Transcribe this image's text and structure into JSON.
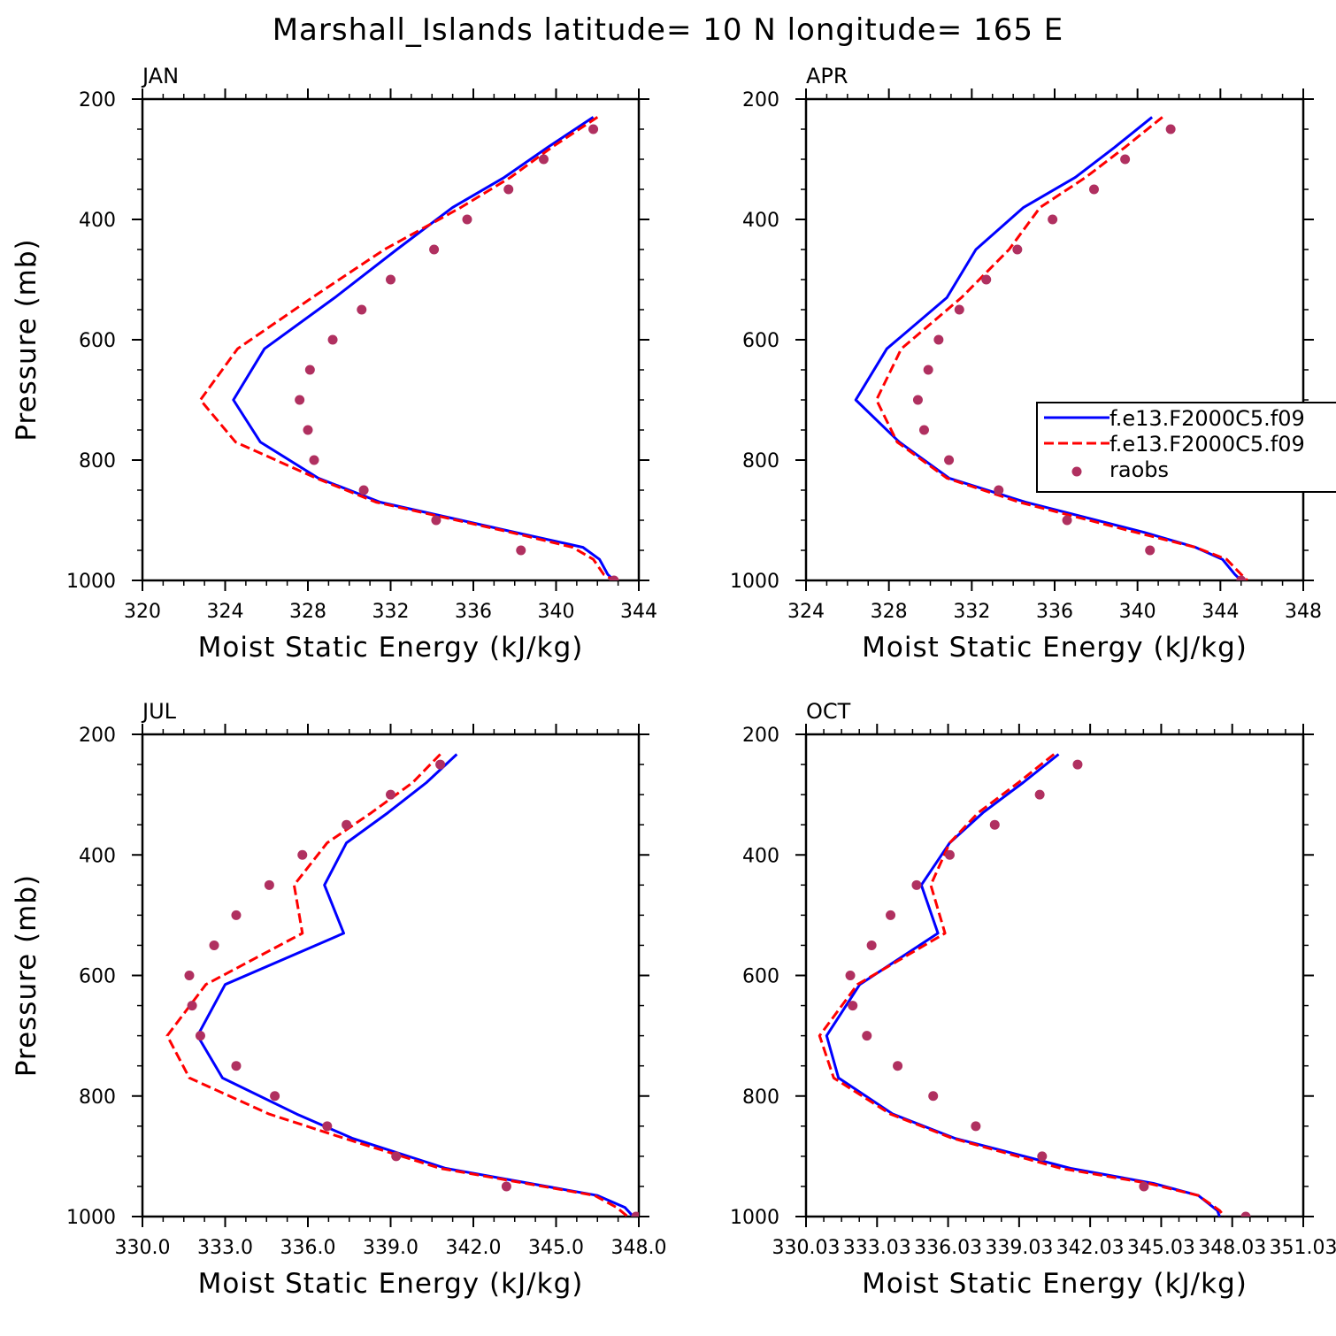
{
  "title": "Marshall_Islands  latitude= 10 N longitude= 165 E",
  "legend": {
    "entries": [
      {
        "label": "f.e13.F2000C5.f09",
        "color": "#0000ff",
        "style": "solid"
      },
      {
        "label": "f.e13.F2000C5.f09",
        "color": "#ff0000",
        "style": "dashed"
      },
      {
        "label": "raobs",
        "color": "#b03060",
        "style": "marker"
      }
    ]
  },
  "chart_data": [
    {
      "type": "line",
      "panel": "JAN",
      "xlabel": "Moist Static Energy (kJ/kg)",
      "ylabel": "Pressure (mb)",
      "xlim": [
        320,
        344
      ],
      "xticks": [
        "320",
        "324",
        "328",
        "332",
        "336",
        "340",
        "344"
      ],
      "ylim": [
        200,
        1000
      ],
      "yticks": [
        "200",
        "400",
        "600",
        "800",
        "1000"
      ],
      "series": [
        {
          "style": "solid",
          "color": "#0000ff",
          "p": [
            230,
            280,
            330,
            380,
            450,
            530,
            615,
            700,
            770,
            830,
            870,
            920,
            945,
            965,
            990,
            1000
          ],
          "x": [
            341.8,
            339.6,
            337.5,
            335.0,
            332.3,
            329.3,
            325.9,
            324.4,
            325.7,
            328.5,
            331.5,
            338.0,
            341.3,
            342.1,
            342.5,
            342.8
          ]
        },
        {
          "style": "dashed",
          "color": "#ff0000",
          "p": [
            230,
            280,
            330,
            380,
            450,
            530,
            615,
            700,
            770,
            830,
            870,
            920,
            945,
            965,
            990,
            1000
          ],
          "x": [
            342.0,
            339.8,
            337.8,
            335.4,
            331.7,
            328.2,
            324.6,
            322.8,
            324.5,
            328.4,
            331.3,
            337.8,
            340.8,
            341.8,
            342.3,
            342.8
          ]
        },
        {
          "style": "marker",
          "color": "#b03060",
          "p": [
            250,
            300,
            350,
            400,
            450,
            500,
            550,
            600,
            650,
            700,
            750,
            800,
            850,
            900,
            950,
            1000
          ],
          "x": [
            341.8,
            339.4,
            337.7,
            335.7,
            334.1,
            332.0,
            330.6,
            329.2,
            328.1,
            327.6,
            328.0,
            328.3,
            330.7,
            334.2,
            338.3,
            342.8
          ]
        }
      ]
    },
    {
      "type": "line",
      "panel": "APR",
      "xlabel": "Moist Static Energy (kJ/kg)",
      "ylabel": "",
      "xlim": [
        324,
        348
      ],
      "xticks": [
        "324",
        "328",
        "332",
        "336",
        "340",
        "344",
        "348"
      ],
      "ylim": [
        200,
        1000
      ],
      "yticks": [
        "200",
        "400",
        "600",
        "800",
        "1000"
      ],
      "series": [
        {
          "style": "solid",
          "color": "#0000ff",
          "p": [
            230,
            280,
            330,
            380,
            450,
            530,
            615,
            700,
            770,
            830,
            870,
            920,
            945,
            965,
            990,
            1000
          ],
          "x": [
            340.7,
            338.9,
            337.0,
            334.5,
            332.2,
            330.8,
            327.9,
            326.4,
            328.5,
            330.9,
            334.6,
            340.3,
            342.8,
            344.1,
            344.7,
            345.0
          ]
        },
        {
          "style": "dashed",
          "color": "#ff0000",
          "p": [
            230,
            280,
            330,
            380,
            450,
            530,
            615,
            700,
            770,
            830,
            870,
            920,
            945,
            965,
            990,
            1000
          ],
          "x": [
            341.2,
            339.4,
            337.5,
            335.3,
            333.8,
            331.5,
            328.6,
            327.4,
            328.4,
            330.8,
            334.3,
            339.9,
            342.8,
            344.3,
            345.0,
            345.3
          ]
        },
        {
          "style": "marker",
          "color": "#b03060",
          "p": [
            250,
            300,
            350,
            400,
            450,
            500,
            550,
            600,
            650,
            700,
            750,
            800,
            850,
            900,
            950,
            1000
          ],
          "x": [
            341.6,
            339.4,
            337.9,
            335.9,
            334.2,
            332.7,
            331.4,
            330.4,
            329.9,
            329.4,
            329.7,
            330.9,
            333.3,
            336.6,
            340.6,
            345.0
          ]
        }
      ]
    },
    {
      "type": "line",
      "panel": "JUL",
      "xlabel": "Moist Static Energy (kJ/kg)",
      "ylabel": "Pressure (mb)",
      "xlim": [
        330,
        348
      ],
      "xticks": [
        "330.0",
        "333.0",
        "336.0",
        "339.0",
        "342.0",
        "345.0",
        "348.0"
      ],
      "ylim": [
        200,
        1000
      ],
      "yticks": [
        "200",
        "400",
        "600",
        "800",
        "1000"
      ],
      "series": [
        {
          "style": "solid",
          "color": "#0000ff",
          "p": [
            233,
            280,
            330,
            380,
            450,
            530,
            615,
            700,
            770,
            830,
            870,
            920,
            965,
            985,
            1000
          ],
          "x": [
            341.4,
            340.3,
            338.9,
            337.4,
            336.6,
            337.3,
            333.0,
            332.0,
            332.9,
            335.6,
            337.6,
            341.0,
            346.5,
            347.5,
            347.8
          ]
        },
        {
          "style": "dashed",
          "color": "#ff0000",
          "p": [
            233,
            280,
            330,
            380,
            450,
            530,
            615,
            700,
            770,
            830,
            870,
            920,
            965,
            985,
            1000
          ],
          "x": [
            340.8,
            339.8,
            338.3,
            336.7,
            335.5,
            335.8,
            332.3,
            330.9,
            331.7,
            334.6,
            337.3,
            340.8,
            346.4,
            347.2,
            347.6
          ]
        },
        {
          "style": "marker",
          "color": "#b03060",
          "p": [
            250,
            300,
            350,
            400,
            450,
            500,
            550,
            600,
            650,
            700,
            750,
            800,
            850,
            900,
            950,
            1000
          ],
          "x": [
            340.8,
            339.0,
            337.4,
            335.8,
            334.6,
            333.4,
            332.6,
            331.7,
            331.8,
            332.1,
            333.4,
            334.8,
            336.7,
            339.2,
            343.2,
            347.9
          ]
        }
      ]
    },
    {
      "type": "line",
      "panel": "OCT",
      "xlabel": "Moist Static Energy (kJ/kg)",
      "ylabel": "",
      "xlim": [
        330.03,
        351.03
      ],
      "xticks": [
        "330.03",
        "333.03",
        "336.03",
        "339.03",
        "342.03",
        "345.03",
        "348.03",
        "351.03"
      ],
      "ylim": [
        200,
        1000
      ],
      "yticks": [
        "200",
        "400",
        "600",
        "800",
        "1000"
      ],
      "series": [
        {
          "style": "solid",
          "color": "#0000ff",
          "p": [
            233,
            280,
            330,
            380,
            450,
            530,
            615,
            700,
            770,
            830,
            870,
            920,
            945,
            965,
            990,
            1000
          ],
          "x": [
            340.7,
            339.2,
            337.5,
            336.1,
            334.9,
            335.6,
            332.3,
            330.9,
            331.4,
            333.7,
            336.3,
            341.2,
            344.7,
            346.6,
            347.4,
            347.5
          ]
        },
        {
          "style": "dashed",
          "color": "#ff0000",
          "p": [
            233,
            280,
            330,
            380,
            450,
            530,
            615,
            700,
            770,
            830,
            870,
            920,
            945,
            965,
            990,
            1000
          ],
          "x": [
            340.5,
            339.0,
            337.3,
            336.1,
            335.3,
            335.9,
            332.2,
            330.6,
            331.2,
            333.6,
            336.2,
            340.8,
            344.5,
            346.6,
            347.5,
            347.7
          ]
        },
        {
          "style": "marker",
          "color": "#b03060",
          "p": [
            250,
            300,
            350,
            400,
            450,
            500,
            550,
            600,
            650,
            700,
            750,
            800,
            850,
            900,
            950,
            1000
          ],
          "x": [
            341.5,
            339.9,
            338.0,
            336.1,
            334.7,
            333.6,
            332.8,
            331.9,
            332.0,
            332.6,
            333.9,
            335.4,
            337.2,
            340.0,
            344.3,
            348.6
          ]
        }
      ]
    }
  ]
}
